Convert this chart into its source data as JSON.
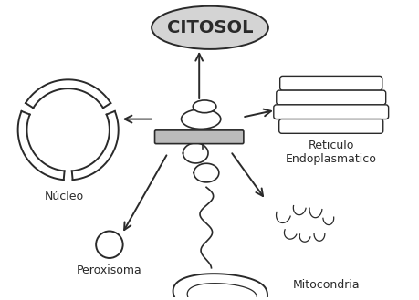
{
  "title": "CITOSOL",
  "labels": {
    "nucleo": "Núcleo",
    "reticulo": "Reticulo\nEndoplasmatico",
    "peroxisoma": "Peroxisoma",
    "mitocondria": "Mitocondria"
  },
  "bg_color": "#ffffff",
  "draw_color": "#2a2a2a",
  "citosol_fill": "#d4d4d4"
}
